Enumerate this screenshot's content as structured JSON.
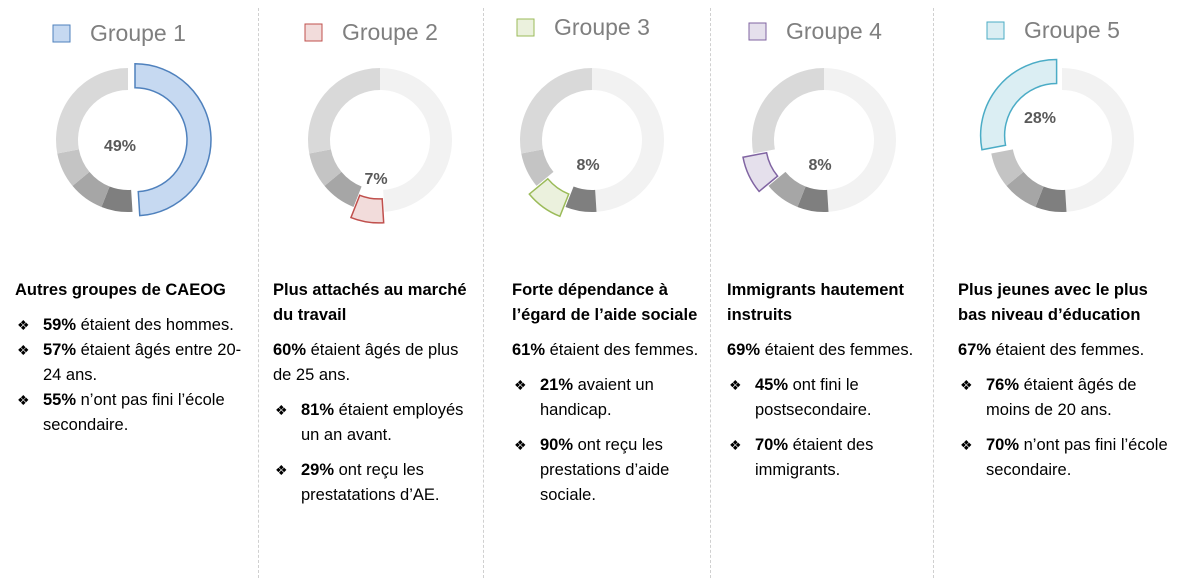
{
  "chart_data": {
    "type": "donut",
    "categories": [
      "Groupe 1",
      "Groupe 2",
      "Groupe 3",
      "Groupe 4",
      "Groupe 5"
    ],
    "values": [
      49,
      7,
      8,
      8,
      28
    ],
    "value_labels": [
      "49%",
      "7%",
      "8%",
      "8%",
      "28%"
    ],
    "colors": [
      "#c6d9f1",
      "#f2dcdb",
      "#ebf1dd",
      "#e5e0ec",
      "#dbeef3"
    ],
    "edge_colors": [
      "#4f81bd",
      "#c0504d",
      "#9bbb59",
      "#8064a2",
      "#4bacc6"
    ],
    "grey_colors": [
      "#f2f2f2",
      "#7f7f7f",
      "#a6a6a6",
      "#c4c4c4",
      "#d9d9d9"
    ]
  },
  "panels": [
    {
      "heading": "Autres groupes de CAEOG",
      "bullets": [
        {
          "bold": "59%",
          "text": "étaient des hommes."
        },
        {
          "bold": "57%",
          "text": "étaient âgés entre 20-24 ans."
        },
        {
          "bold": "55%",
          "text": "n’ont pas fini l’école secondaire."
        }
      ]
    },
    {
      "heading": "Plus attachés au marché du travail",
      "intro": {
        "bold": "60%",
        "text": "étaient âgés de plus de 25 ans."
      },
      "bullets": [
        {
          "bold": "81%",
          "text": "étaient employés un an avant."
        },
        {
          "bold": "29%",
          "text": "ont reçu les prestatations d’AE."
        }
      ]
    },
    {
      "heading": "Forte dépendance à l’égard de l’aide sociale",
      "intro": {
        "bold": "61%",
        "text": "étaient des femmes."
      },
      "bullets": [
        {
          "bold": "21%",
          "text": "avaient un handicap."
        },
        {
          "bold": "90%",
          "text": "ont reçu les prestations d’aide sociale."
        }
      ]
    },
    {
      "heading": "Immigrants hautement instruits",
      "intro": {
        "bold": "69%",
        "text": "étaient des femmes."
      },
      "bullets": [
        {
          "bold": "45%",
          "text": "ont fini le postsecondaire."
        },
        {
          "bold": "70%",
          "text": "étaient des immigrants."
        }
      ]
    },
    {
      "heading": "Plus jeunes avec le plus bas niveau d’éducation",
      "intro": {
        "bold": "67%",
        "text": "étaient des femmes."
      },
      "bullets": [
        {
          "bold": "76%",
          "text": "étaient âgés de moins de 20 ans."
        },
        {
          "bold": "70%",
          "text": "n’ont pas fini l’école secondaire."
        }
      ]
    }
  ]
}
